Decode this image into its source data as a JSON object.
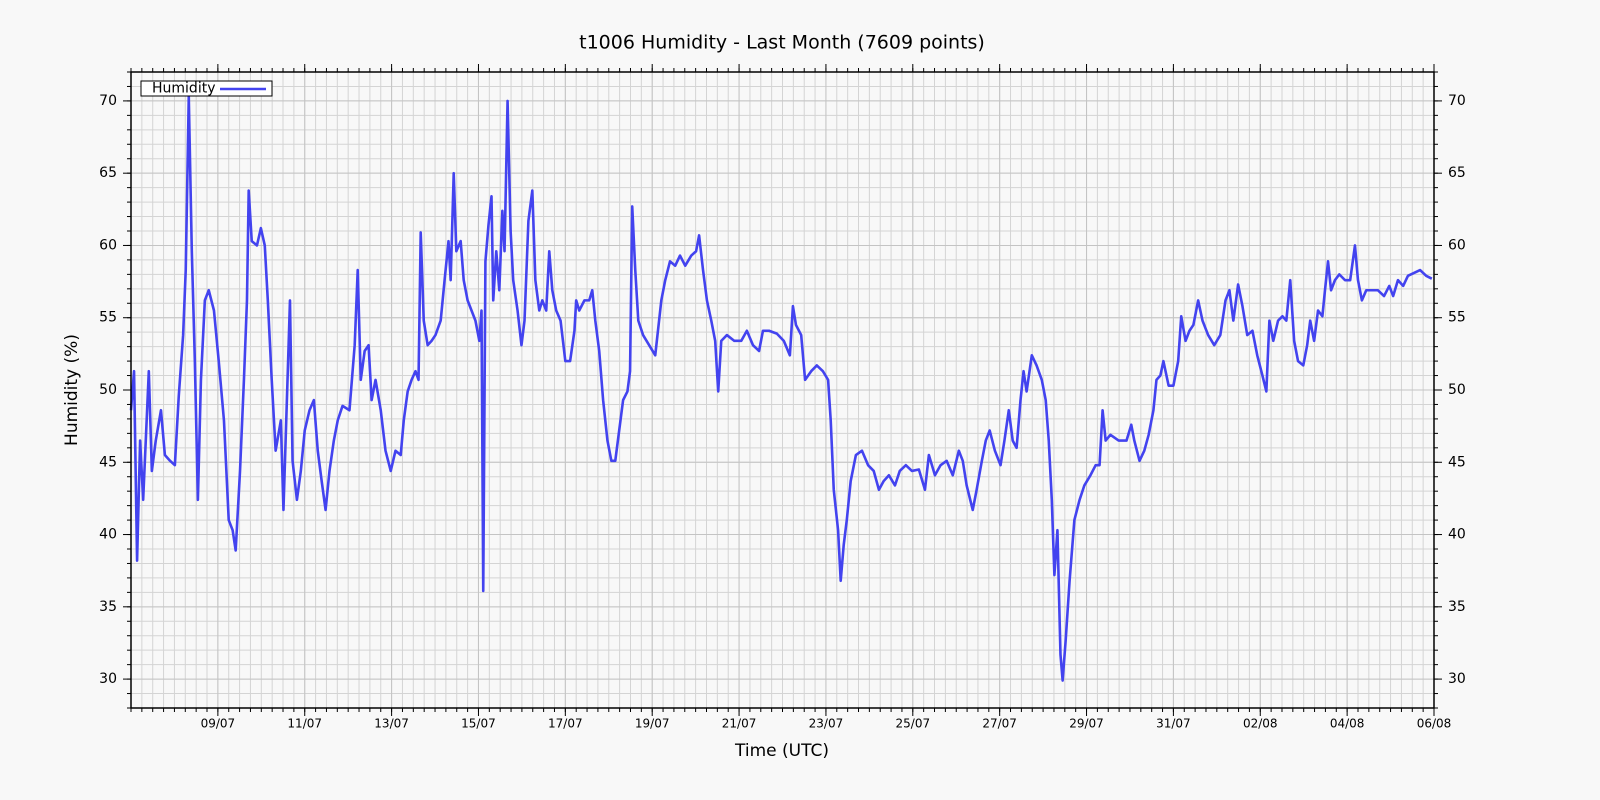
{
  "chart_data": {
    "type": "line",
    "title": "t1006 Humidity - Last Month (7609 points)",
    "xlabel": "Time (UTC)",
    "ylabel": "Humidity (%)",
    "grid": true,
    "minor_grid": true,
    "legend": "upper left",
    "xlim": [
      0,
      30
    ],
    "xticks": [
      {
        "value": 2,
        "label": "09/07"
      },
      {
        "value": 4,
        "label": "11/07"
      },
      {
        "value": 6,
        "label": "13/07"
      },
      {
        "value": 8,
        "label": "15/07"
      },
      {
        "value": 10,
        "label": "17/07"
      },
      {
        "value": 12,
        "label": "19/07"
      },
      {
        "value": 14,
        "label": "21/07"
      },
      {
        "value": 16,
        "label": "23/07"
      },
      {
        "value": 18,
        "label": "25/07"
      },
      {
        "value": 20,
        "label": "27/07"
      },
      {
        "value": 22,
        "label": "29/07"
      },
      {
        "value": 24,
        "label": "31/07"
      },
      {
        "value": 26,
        "label": "02/08"
      },
      {
        "value": 28,
        "label": "04/08"
      },
      {
        "value": 30,
        "label": "06/08"
      }
    ],
    "ylim": [
      28,
      72
    ],
    "yticks": [
      30,
      35,
      40,
      45,
      50,
      55,
      60,
      65,
      70
    ],
    "x": [
      0,
      0.07,
      0.14,
      0.21,
      0.28,
      0.34,
      0.41,
      0.48,
      0.57,
      0.69,
      0.78,
      0.9,
      1.01,
      1.1,
      1.2,
      1.26,
      1.33,
      1.4,
      1.47,
      1.54,
      1.61,
      1.7,
      1.79,
      1.91,
      2.02,
      2.14,
      2.25,
      2.34,
      2.41,
      2.51,
      2.6,
      2.67,
      2.71,
      2.78,
      2.9,
      2.99,
      3.08,
      3.15,
      3.24,
      3.33,
      3.45,
      3.51,
      3.61,
      3.66,
      3.72,
      3.82,
      3.91,
      4.0,
      4.11,
      4.21,
      4.3,
      4.39,
      4.48,
      4.57,
      4.67,
      4.76,
      4.87,
      5.03,
      5.15,
      5.22,
      5.29,
      5.38,
      5.47,
      5.54,
      5.63,
      5.75,
      5.86,
      5.98,
      6.09,
      6.21,
      6.28,
      6.37,
      6.46,
      6.55,
      6.62,
      6.67,
      6.74,
      6.83,
      6.92,
      7.01,
      7.13,
      7.22,
      7.31,
      7.36,
      7.43,
      7.49,
      7.59,
      7.66,
      7.75,
      7.84,
      7.93,
      8.02,
      8.07,
      8.11,
      8.16,
      8.23,
      8.3,
      8.34,
      8.41,
      8.48,
      8.55,
      8.6,
      8.67,
      8.74,
      8.8,
      8.9,
      8.99,
      9.06,
      9.15,
      9.24,
      9.31,
      9.4,
      9.47,
      9.56,
      9.63,
      9.7,
      9.79,
      9.89,
      10.0,
      10.11,
      10.21,
      10.25,
      10.32,
      10.44,
      10.55,
      10.62,
      10.69,
      10.78,
      10.87,
      10.97,
      11.06,
      11.15,
      11.24,
      11.33,
      11.43,
      11.49,
      11.54,
      11.61,
      11.68,
      11.79,
      11.93,
      12.07,
      12.21,
      12.3,
      12.41,
      12.53,
      12.64,
      12.76,
      12.9,
      13.01,
      13.08,
      13.17,
      13.26,
      13.36,
      13.45,
      13.52,
      13.59,
      13.72,
      13.89,
      14.05,
      14.18,
      14.32,
      14.46,
      14.55,
      14.69,
      14.87,
      15.03,
      15.17,
      15.24,
      15.31,
      15.43,
      15.52,
      15.66,
      15.79,
      15.93,
      16.05,
      16.11,
      16.18,
      16.28,
      16.34,
      16.41,
      16.48,
      16.57,
      16.69,
      16.83,
      16.97,
      17.1,
      17.22,
      17.33,
      17.45,
      17.59,
      17.7,
      17.84,
      17.98,
      18.14,
      18.28,
      18.37,
      18.51,
      18.64,
      18.78,
      18.92,
      19.06,
      19.15,
      19.24,
      19.38,
      19.47,
      19.59,
      19.68,
      19.77,
      19.89,
      20.02,
      20.11,
      20.21,
      20.3,
      20.39,
      20.48,
      20.55,
      20.62,
      20.74,
      20.85,
      20.97,
      21.06,
      21.13,
      21.2,
      21.26,
      21.33,
      21.4,
      21.45,
      21.52,
      21.61,
      21.72,
      21.84,
      21.95,
      22.09,
      22.21,
      22.3,
      22.37,
      22.44,
      22.55,
      22.74,
      22.92,
      23.03,
      23.1,
      23.22,
      23.33,
      23.43,
      23.54,
      23.61,
      23.7,
      23.77,
      23.89,
      24.0,
      24.11,
      24.18,
      24.28,
      24.37,
      24.46,
      24.57,
      24.67,
      24.8,
      24.94,
      25.08,
      25.2,
      25.29,
      25.38,
      25.49,
      25.59,
      25.7,
      25.82,
      25.93,
      26.05,
      26.14,
      26.21,
      26.3,
      26.41,
      26.51,
      26.6,
      26.69,
      26.78,
      26.87,
      26.99,
      27.08,
      27.15,
      27.24,
      27.33,
      27.43,
      27.49,
      27.56,
      27.63,
      27.72,
      27.82,
      27.95,
      28.07,
      28.18,
      28.25,
      28.34,
      28.44,
      28.57,
      28.71,
      28.85,
      28.97,
      29.06,
      29.17,
      29.29,
      29.4,
      29.54,
      29.68,
      29.82,
      29.95
    ],
    "series": [
      {
        "name": "Humidity",
        "color": "#4343ef",
        "values": [
          48.6,
          51.3,
          38.2,
          46.5,
          42.4,
          46.5,
          51.3,
          44.4,
          46.5,
          48.6,
          45.5,
          45.1,
          44.8,
          49.6,
          53.8,
          58.3,
          70.3,
          59.6,
          52.0,
          42.4,
          50.7,
          56.2,
          56.9,
          55.5,
          52.0,
          47.9,
          41.0,
          40.3,
          38.9,
          44.4,
          50.7,
          56.2,
          63.8,
          60.3,
          60.0,
          61.2,
          60.0,
          56.2,
          50.7,
          45.8,
          47.9,
          41.7,
          51.3,
          56.2,
          45.1,
          42.4,
          44.4,
          47.2,
          48.6,
          49.3,
          45.8,
          43.7,
          41.7,
          44.4,
          46.5,
          47.9,
          48.9,
          48.6,
          53.1,
          58.3,
          50.7,
          52.7,
          53.1,
          49.3,
          50.7,
          48.6,
          45.8,
          44.4,
          45.8,
          45.5,
          47.9,
          49.9,
          50.7,
          51.3,
          50.7,
          60.9,
          54.8,
          53.1,
          53.4,
          53.8,
          54.8,
          57.6,
          60.3,
          57.6,
          65.0,
          59.6,
          60.3,
          57.6,
          56.2,
          55.5,
          54.8,
          53.4,
          55.5,
          36.1,
          58.9,
          61.4,
          63.4,
          56.2,
          59.6,
          56.9,
          62.4,
          59.6,
          70.0,
          61.0,
          57.6,
          55.5,
          53.1,
          54.8,
          61.7,
          63.8,
          57.6,
          55.5,
          56.2,
          55.5,
          59.6,
          56.9,
          55.5,
          54.8,
          52.0,
          52.0,
          54.1,
          56.2,
          55.5,
          56.2,
          56.2,
          56.9,
          54.8,
          52.7,
          49.3,
          46.5,
          45.1,
          45.1,
          47.2,
          49.3,
          49.9,
          51.3,
          62.7,
          58.3,
          54.8,
          53.8,
          53.1,
          52.4,
          56.2,
          57.6,
          58.9,
          58.6,
          59.3,
          58.6,
          59.3,
          59.6,
          60.7,
          58.3,
          56.2,
          54.8,
          53.4,
          49.9,
          53.4,
          53.8,
          53.4,
          53.4,
          54.1,
          53.1,
          52.7,
          54.1,
          54.1,
          53.9,
          53.4,
          52.4,
          55.8,
          54.5,
          53.8,
          50.7,
          51.3,
          51.7,
          51.3,
          50.7,
          47.9,
          43.1,
          40.3,
          36.8,
          39.3,
          41.0,
          43.7,
          45.5,
          45.8,
          44.8,
          44.4,
          43.1,
          43.7,
          44.1,
          43.4,
          44.4,
          44.8,
          44.4,
          44.5,
          43.1,
          45.5,
          44.1,
          44.8,
          45.1,
          44.1,
          45.8,
          45.1,
          43.4,
          41.7,
          43.1,
          45.1,
          46.5,
          47.2,
          45.8,
          44.8,
          46.5,
          48.6,
          46.5,
          46.0,
          49.3,
          51.3,
          49.9,
          52.4,
          51.7,
          50.7,
          49.3,
          46.5,
          42.4,
          37.2,
          40.3,
          31.7,
          29.9,
          32.7,
          36.8,
          41.0,
          42.4,
          43.4,
          44.1,
          44.8,
          44.8,
          48.6,
          46.5,
          46.9,
          46.5,
          46.5,
          47.6,
          46.5,
          45.1,
          45.8,
          46.9,
          48.6,
          50.7,
          51.0,
          52.0,
          50.3,
          50.3,
          52.0,
          55.1,
          53.4,
          54.1,
          54.5,
          56.2,
          54.8,
          53.8,
          53.1,
          53.8,
          56.2,
          56.9,
          54.8,
          57.3,
          55.8,
          53.8,
          54.1,
          52.4,
          51.0,
          49.9,
          54.8,
          53.4,
          54.8,
          55.1,
          54.8,
          57.6,
          53.4,
          52.0,
          51.7,
          53.1,
          54.8,
          53.4,
          55.5,
          55.1,
          56.9,
          58.9,
          56.9,
          57.6,
          58.0,
          57.6,
          57.6,
          60.0,
          57.6,
          56.2,
          56.9,
          56.9,
          56.9,
          56.5,
          57.2,
          56.5,
          57.6,
          57.2,
          57.9,
          58.1,
          58.3,
          57.9,
          57.7
        ]
      }
    ]
  }
}
